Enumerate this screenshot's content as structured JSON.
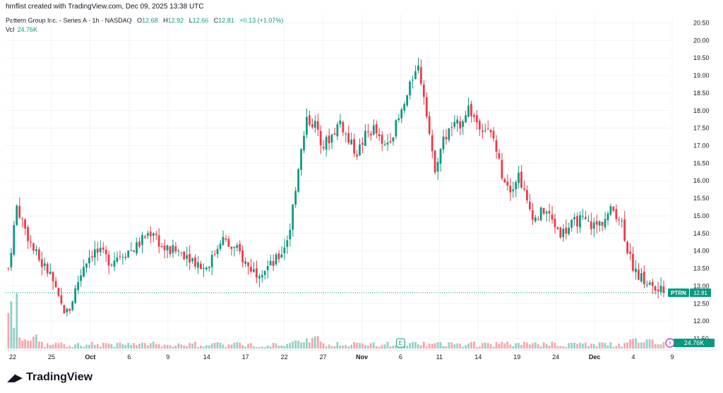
{
  "header": {
    "credit": "hmflist created with TradingView.com, Dec 09, 2025 13:38 UTC"
  },
  "legend": {
    "symbol": "Pattern Group Inc. - Series A · 1h · NASDAQ",
    "o_label": "O",
    "o": "12.68",
    "h_label": "H",
    "h": "12.92",
    "l_label": "L",
    "l": "12.66",
    "c_label": "C",
    "c": "12.81",
    "change": "+0.13 (+1.07%)",
    "vol_label": "Vol",
    "vol": "24.76K"
  },
  "footer": {
    "logo_text": "TradingView"
  },
  "colors": {
    "up": "#089981",
    "down": "#f23645",
    "grid": "#f0f3fa",
    "text": "#131722"
  },
  "chart_data": {
    "type": "candlestick",
    "title": "",
    "ylim": [
      11.5,
      20.75
    ],
    "y_ticks": [
      "11.50",
      "12.00",
      "12.50",
      "13.00",
      "13.50",
      "14.00",
      "14.50",
      "15.00",
      "15.50",
      "16.00",
      "16.50",
      "17.00",
      "17.50",
      "18.00",
      "18.50",
      "19.00",
      "19.50",
      "20.00",
      "20.50"
    ],
    "x_ticks": [
      "22",
      "25",
      "Oct",
      "6",
      "9",
      "14",
      "17",
      "22",
      "27",
      "Nov",
      "6",
      "11",
      "14",
      "19",
      "24",
      "Dec",
      "4",
      "9"
    ],
    "last_price": {
      "symbol": "PTRN",
      "value": 12.81
    },
    "volume_badge": "24.76K",
    "events": [
      {
        "type": "earnings",
        "label": "E",
        "date": "Nov 6"
      }
    ],
    "grid": true,
    "close_path": [
      [
        0,
        13.5
      ],
      [
        1,
        15.3
      ],
      [
        2,
        14.6
      ],
      [
        3,
        14.0
      ],
      [
        4,
        13.6
      ],
      [
        5,
        13.3
      ],
      [
        6,
        12.5
      ],
      [
        7,
        12.2
      ],
      [
        8,
        13.0
      ],
      [
        9,
        13.7
      ],
      [
        10,
        14.0
      ],
      [
        11,
        13.9
      ],
      [
        12,
        13.7
      ],
      [
        13,
        13.9
      ],
      [
        14,
        14.0
      ],
      [
        15,
        14.1
      ],
      [
        16,
        14.4
      ],
      [
        17,
        14.6
      ],
      [
        18,
        14.1
      ],
      [
        19,
        14.0
      ],
      [
        20,
        14.0
      ],
      [
        21,
        13.9
      ],
      [
        22,
        13.7
      ],
      [
        23,
        13.5
      ],
      [
        24,
        13.8
      ],
      [
        25,
        14.4
      ],
      [
        26,
        14.1
      ],
      [
        27,
        14.0
      ],
      [
        28,
        13.6
      ],
      [
        29,
        13.4
      ],
      [
        30,
        13.5
      ],
      [
        31,
        13.6
      ],
      [
        32,
        13.9
      ],
      [
        33,
        14.5
      ],
      [
        34,
        16.3
      ],
      [
        35,
        17.8
      ],
      [
        36,
        17.6
      ],
      [
        37,
        17.0
      ],
      [
        38,
        17.3
      ],
      [
        39,
        17.7
      ],
      [
        40,
        17.1
      ],
      [
        41,
        16.8
      ],
      [
        42,
        17.3
      ],
      [
        43,
        17.5
      ],
      [
        44,
        16.9
      ],
      [
        45,
        17.3
      ],
      [
        46,
        17.8
      ],
      [
        47,
        18.5
      ],
      [
        48,
        19.4
      ],
      [
        49,
        18.3
      ],
      [
        50,
        16.3
      ],
      [
        51,
        17.1
      ],
      [
        52,
        17.5
      ],
      [
        53,
        17.6
      ],
      [
        54,
        18.1
      ],
      [
        55,
        17.7
      ],
      [
        56,
        17.5
      ],
      [
        57,
        17.2
      ],
      [
        58,
        16.2
      ],
      [
        59,
        15.8
      ],
      [
        60,
        16.2
      ],
      [
        61,
        15.3
      ],
      [
        62,
        14.9
      ],
      [
        63,
        15.2
      ],
      [
        64,
        14.8
      ],
      [
        65,
        14.5
      ],
      [
        66,
        14.7
      ],
      [
        67,
        14.9
      ],
      [
        68,
        14.8
      ],
      [
        69,
        14.7
      ],
      [
        70,
        14.9
      ],
      [
        71,
        15.2
      ],
      [
        72,
        14.9
      ],
      [
        73,
        13.8
      ],
      [
        74,
        13.3
      ],
      [
        75,
        13.1
      ],
      [
        76,
        12.9
      ],
      [
        77,
        12.81
      ]
    ],
    "x_range": [
      0,
      77
    ]
  }
}
